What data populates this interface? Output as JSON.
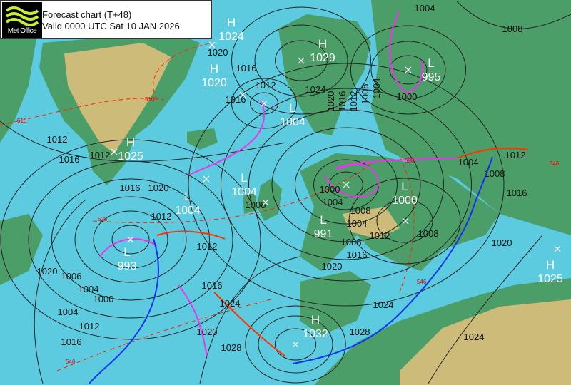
{
  "header": {
    "logo_text": "Met Office",
    "title": "Forecast chart (T+48)",
    "valid": "Valid 0000 UTC Sat 10 JAN 2026"
  },
  "colors": {
    "sea": "#5ccbe0",
    "land_low": "#4aa06a",
    "land_high": "#d6c07a",
    "isobar": "#222222",
    "warm_front": "#ff3300",
    "cold_front": "#1133ee",
    "occluded_front": "#ee33ee",
    "thickness_line": "#ff2200",
    "centre_label": "#ffffff"
  },
  "pressure_centres": [
    {
      "type": "H",
      "value": "1024"
    },
    {
      "type": "H",
      "value": "1029"
    },
    {
      "type": "L",
      "value": "995"
    },
    {
      "type": "H",
      "value": "1020"
    },
    {
      "type": "L",
      "value": "1004"
    },
    {
      "type": "H",
      "value": "1025"
    },
    {
      "type": "L",
      "value": "1004"
    },
    {
      "type": "L",
      "value": "1004"
    },
    {
      "type": "L",
      "value": "1000"
    },
    {
      "type": "L",
      "value": "991"
    },
    {
      "type": "L",
      "value": "993"
    },
    {
      "type": "H",
      "value": "1032"
    },
    {
      "type": "H",
      "value": "1025"
    }
  ],
  "isobar_labels": [
    "1004",
    "1008",
    "1016",
    "1020",
    "1016",
    "1012",
    "1024",
    "1020",
    "1016",
    "1012",
    "1008",
    "1004",
    "1000",
    "1012",
    "1016",
    "1012",
    "1016",
    "1020",
    "1012",
    "1004",
    "1008",
    "1000",
    "1004",
    "1008",
    "1012",
    "1016",
    "1020",
    "1008",
    "1012",
    "1004",
    "1000",
    "1020",
    "1006",
    "1004",
    "1012",
    "1016",
    "1016",
    "1024",
    "1020",
    "1028",
    "1024",
    "1028",
    "1024",
    "1004",
    "1008",
    "1012",
    "1016",
    "1020",
    "1008"
  ],
  "thickness_labels": [
    "510",
    "510",
    "528",
    "546",
    "546",
    "546",
    "528"
  ]
}
